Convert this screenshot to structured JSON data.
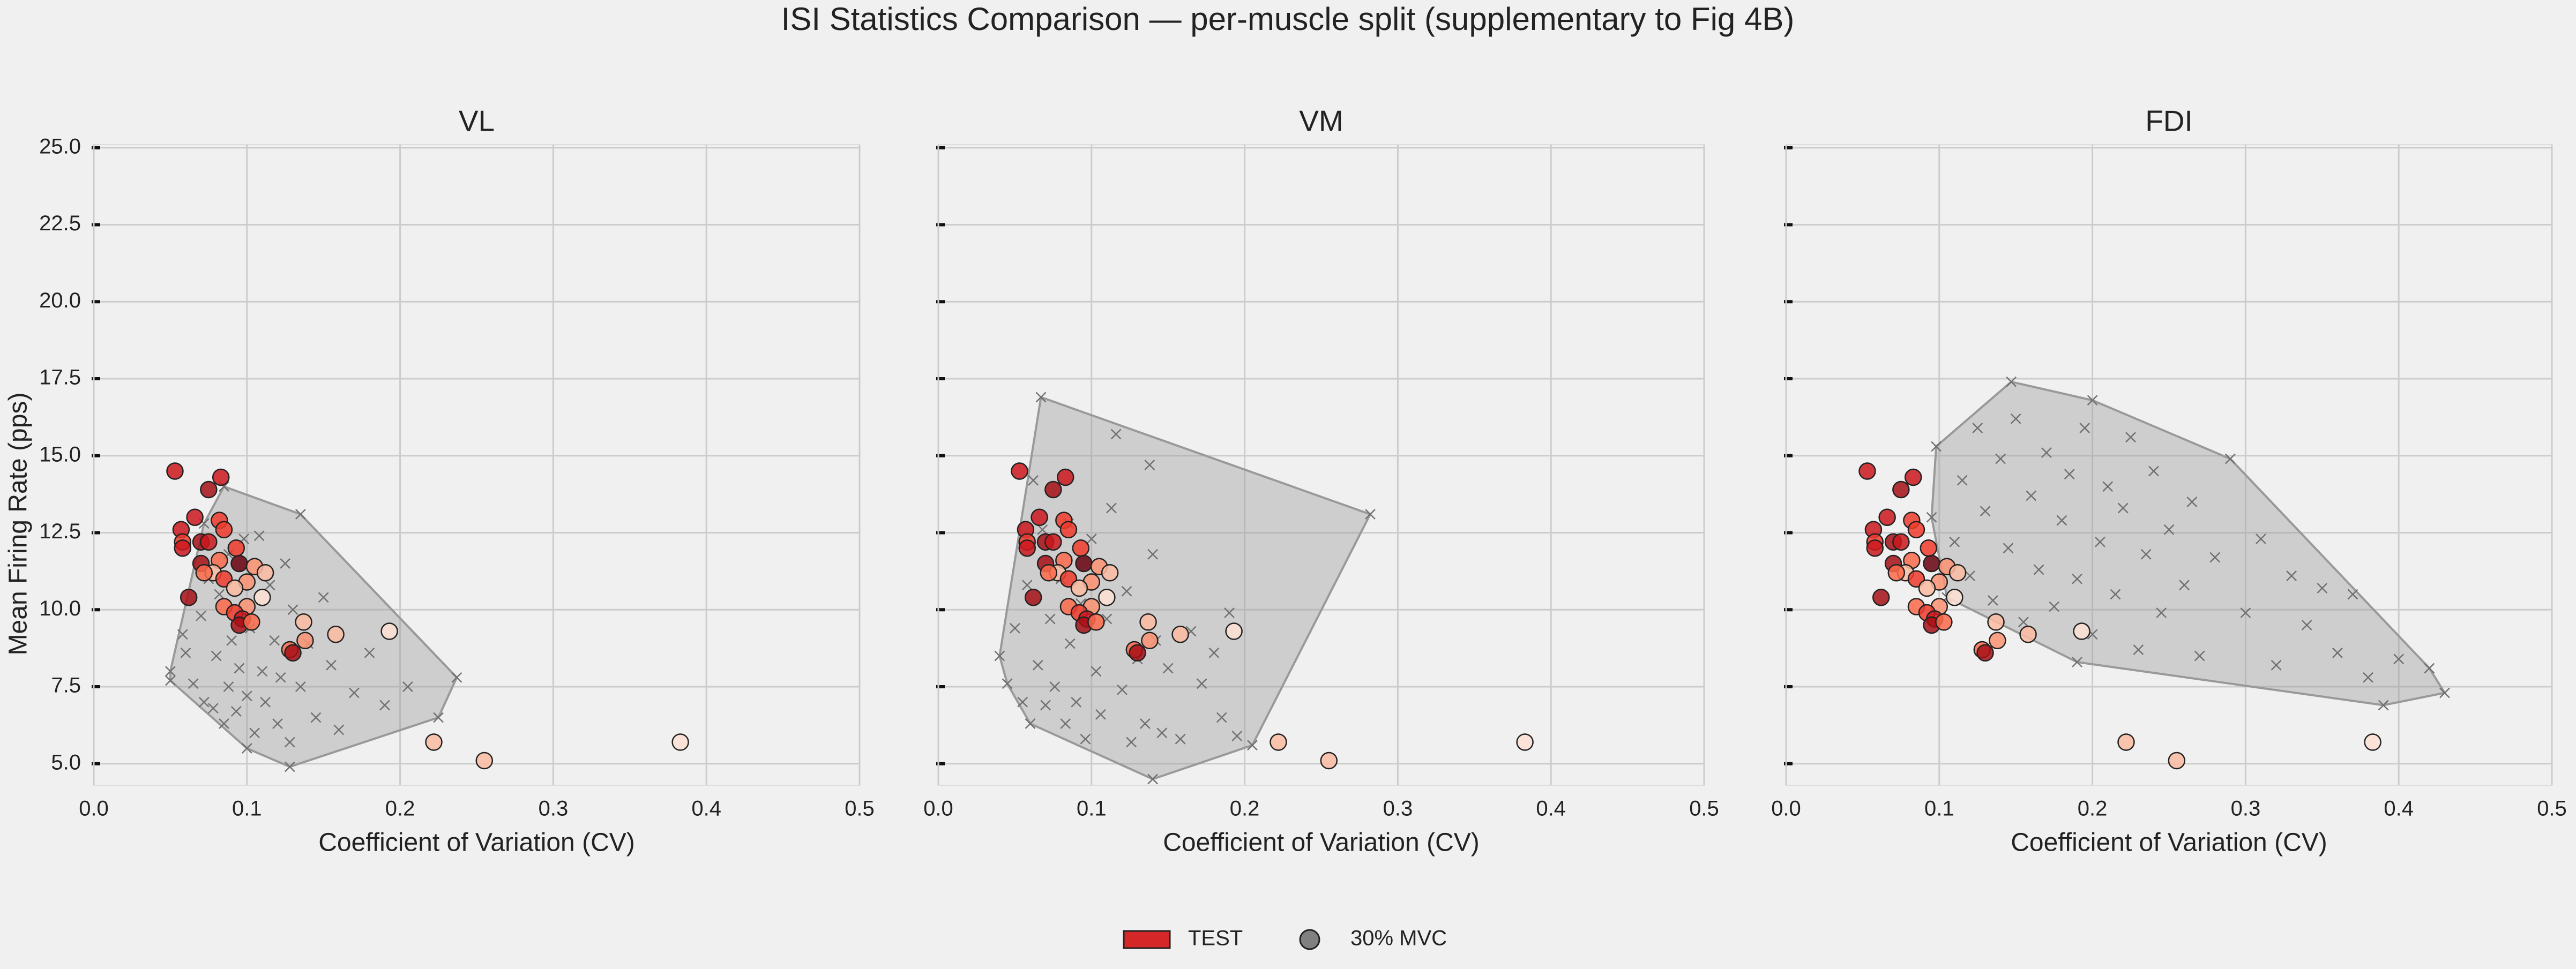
{
  "title": "ISI Statistics Comparison — per-muscle split (supplementary to Fig 4B)",
  "legend": [
    {
      "label": "TEST",
      "color": "#d62728",
      "marker": "square"
    },
    {
      "label": "30% MVC",
      "color": "#808080",
      "marker": "circle"
    }
  ],
  "chart_data": [
    {
      "type": "scatter",
      "title": "VL",
      "x_label": "Coefficient of Variation (CV)",
      "y_label": "Mean Firing Rate (pps)",
      "xlim": [
        0,
        0.5
      ],
      "ylim": [
        4.3,
        25.1
      ],
      "grid": true,
      "hull": true,
      "ytick_labels": true,
      "xticks": [
        {
          "value": 0,
          "label": "0.0"
        },
        0.1,
        0.2,
        0.3,
        0.4,
        0.5
      ],
      "yticks": [
        {
          "value": 5,
          "label": "5.0"
        },
        7.5,
        {
          "value": 10,
          "label": "10.0"
        },
        12.5,
        {
          "value": 15,
          "label": "15.0"
        },
        17.5,
        {
          "value": 20,
          "label": "20.0"
        },
        22.5,
        {
          "value": 25,
          "label": "25.0"
        }
      ],
      "series": [
        {
          "marker": "x",
          "color": "#707070",
          "x": [
            0.05,
            0.05,
            0.085,
            0.135,
            0.237,
            0.225,
            0.128,
            0.1,
            0.058,
            0.06,
            0.065,
            0.07,
            0.072,
            0.075,
            0.078,
            0.08,
            0.082,
            0.085,
            0.088,
            0.09,
            0.093,
            0.095,
            0.098,
            0.1,
            0.102,
            0.105,
            0.108,
            0.11,
            0.112,
            0.115,
            0.118,
            0.12,
            0.122,
            0.125,
            0.128,
            0.13,
            0.135,
            0.14,
            0.145,
            0.15,
            0.155,
            0.16,
            0.17,
            0.18,
            0.19,
            0.205,
            0.072,
            0.088
          ],
          "values": [
            7.7,
            8.0,
            14.0,
            13.1,
            7.8,
            6.5,
            4.9,
            5.5,
            9.2,
            8.6,
            7.6,
            9.8,
            7.0,
            11.0,
            6.8,
            8.5,
            10.5,
            6.3,
            7.5,
            9.0,
            6.7,
            8.1,
            12.3,
            7.2,
            9.4,
            6.0,
            12.4,
            8.0,
            7.0,
            10.8,
            9.0,
            6.3,
            7.8,
            11.5,
            5.7,
            10.0,
            7.5,
            8.9,
            6.5,
            10.4,
            8.2,
            6.1,
            7.3,
            8.6,
            6.9,
            7.5,
            12.8,
            11.8
          ]
        },
        {
          "marker": "circle",
          "x": [
            0.053,
            0.083,
            0.075,
            0.066,
            0.082,
            0.057,
            0.085,
            0.058,
            0.07,
            0.075,
            0.093,
            0.058,
            0.082,
            0.07,
            0.095,
            0.105,
            0.078,
            0.072,
            0.112,
            0.085,
            0.1,
            0.092,
            0.062,
            0.11,
            0.085,
            0.1,
            0.092,
            0.097,
            0.095,
            0.103,
            0.137,
            0.158,
            0.193,
            0.138,
            0.128,
            0.13,
            0.222,
            0.255,
            0.383
          ],
          "values": [
            14.5,
            14.3,
            13.9,
            13.0,
            12.9,
            12.6,
            12.6,
            12.2,
            12.2,
            12.2,
            12.0,
            12.0,
            11.6,
            11.5,
            11.5,
            11.4,
            11.2,
            11.2,
            11.2,
            11.0,
            10.9,
            10.7,
            10.4,
            10.4,
            10.1,
            10.1,
            9.9,
            9.7,
            9.5,
            9.6,
            9.6,
            9.2,
            9.3,
            9.0,
            8.7,
            8.6,
            5.7,
            5.1,
            5.7
          ],
          "colors": [
            "#cb181d",
            "#cb181d",
            "#a50f15",
            "#cb181d",
            "#ef3b2c",
            "#cb181d",
            "#ef3b2c",
            "#ef3b2c",
            "#a50f15",
            "#cb181d",
            "#ef3b2c",
            "#cb181d",
            "#fb6a4a",
            "#a50f15",
            "#67000d",
            "#fc9272",
            "#fcbba1",
            "#fb6a4a",
            "#fcbba1",
            "#ef3b2c",
            "#fc9272",
            "#fcbba1",
            "#a50f15",
            "#fee0d2",
            "#fb6a4a",
            "#fc9272",
            "#ef3b2c",
            "#cb181d",
            "#a50f15",
            "#fb6a4a",
            "#fcbba1",
            "#fcbba1",
            "#fee0d2",
            "#fc9272",
            "#fb6a4a",
            "#a50f15",
            "#fcbba1",
            "#fcbba1",
            "#fee0d2"
          ]
        }
      ]
    },
    {
      "type": "scatter",
      "title": "VM",
      "x_label": "Coefficient of Variation (CV)",
      "xlim": [
        0,
        0.5
      ],
      "ylim": [
        4.3,
        25.1
      ],
      "grid": true,
      "hull": true,
      "ytick_labels": false,
      "xticks": [
        {
          "value": 0,
          "label": "0.0"
        },
        0.1,
        0.2,
        0.3,
        0.4,
        0.5
      ],
      "yticks": [
        5,
        7.5,
        10,
        12.5,
        15,
        17.5,
        20,
        22.5,
        25
      ],
      "series": [
        {
          "marker": "x",
          "color": "#707070",
          "x": [
            0.04,
            0.067,
            0.282,
            0.205,
            0.14,
            0.06,
            0.045,
            0.05,
            0.055,
            0.058,
            0.062,
            0.065,
            0.068,
            0.07,
            0.073,
            0.076,
            0.08,
            0.083,
            0.086,
            0.09,
            0.093,
            0.096,
            0.1,
            0.103,
            0.106,
            0.11,
            0.113,
            0.116,
            0.12,
            0.123,
            0.126,
            0.13,
            0.135,
            0.138,
            0.142,
            0.146,
            0.15,
            0.158,
            0.165,
            0.172,
            0.18,
            0.185,
            0.19,
            0.195,
            0.14,
            0.085
          ],
          "values": [
            8.5,
            16.9,
            13.1,
            5.6,
            4.5,
            6.3,
            7.6,
            9.4,
            7.0,
            10.8,
            14.2,
            8.2,
            12.6,
            6.9,
            9.7,
            7.5,
            11.0,
            6.3,
            8.9,
            7.0,
            10.2,
            5.8,
            12.3,
            8.0,
            6.6,
            9.7,
            13.3,
            15.7,
            7.4,
            10.6,
            5.7,
            8.4,
            6.3,
            14.7,
            9.0,
            6.0,
            8.1,
            5.8,
            9.3,
            7.6,
            8.6,
            6.5,
            9.9,
            5.9,
            11.8,
            12.8
          ]
        },
        {
          "marker": "circle",
          "x": [
            0.053,
            0.083,
            0.075,
            0.066,
            0.082,
            0.057,
            0.085,
            0.058,
            0.07,
            0.075,
            0.093,
            0.058,
            0.082,
            0.07,
            0.095,
            0.105,
            0.078,
            0.072,
            0.112,
            0.085,
            0.1,
            0.092,
            0.062,
            0.11,
            0.085,
            0.1,
            0.092,
            0.097,
            0.095,
            0.103,
            0.137,
            0.158,
            0.193,
            0.138,
            0.128,
            0.13,
            0.222,
            0.255,
            0.383
          ],
          "values": [
            14.5,
            14.3,
            13.9,
            13.0,
            12.9,
            12.6,
            12.6,
            12.2,
            12.2,
            12.2,
            12.0,
            12.0,
            11.6,
            11.5,
            11.5,
            11.4,
            11.2,
            11.2,
            11.2,
            11.0,
            10.9,
            10.7,
            10.4,
            10.4,
            10.1,
            10.1,
            9.9,
            9.7,
            9.5,
            9.6,
            9.6,
            9.2,
            9.3,
            9.0,
            8.7,
            8.6,
            5.7,
            5.1,
            5.7
          ],
          "colors": [
            "#cb181d",
            "#cb181d",
            "#a50f15",
            "#cb181d",
            "#ef3b2c",
            "#cb181d",
            "#ef3b2c",
            "#ef3b2c",
            "#a50f15",
            "#cb181d",
            "#ef3b2c",
            "#cb181d",
            "#fb6a4a",
            "#a50f15",
            "#67000d",
            "#fc9272",
            "#fcbba1",
            "#fb6a4a",
            "#fcbba1",
            "#ef3b2c",
            "#fc9272",
            "#fcbba1",
            "#a50f15",
            "#fee0d2",
            "#fb6a4a",
            "#fc9272",
            "#ef3b2c",
            "#cb181d",
            "#a50f15",
            "#fb6a4a",
            "#fcbba1",
            "#fcbba1",
            "#fee0d2",
            "#fc9272",
            "#fb6a4a",
            "#a50f15",
            "#fcbba1",
            "#fcbba1",
            "#fee0d2"
          ]
        }
      ]
    },
    {
      "type": "scatter",
      "title": "FDI",
      "x_label": "Coefficient of Variation (CV)",
      "xlim": [
        0,
        0.5
      ],
      "ylim": [
        4.3,
        25.1
      ],
      "grid": true,
      "hull": true,
      "ytick_labels": false,
      "xticks": [
        {
          "value": 0,
          "label": "0.0"
        },
        0.1,
        0.2,
        0.3,
        0.4,
        0.5
      ],
      "yticks": [
        5,
        7.5,
        10,
        12.5,
        15,
        17.5,
        20,
        22.5,
        25
      ],
      "series": [
        {
          "marker": "x",
          "color": "#707070",
          "x": [
            0.098,
            0.147,
            0.2,
            0.43,
            0.42,
            0.39,
            0.19,
            0.105,
            0.095,
            0.11,
            0.115,
            0.12,
            0.125,
            0.13,
            0.135,
            0.14,
            0.145,
            0.15,
            0.155,
            0.16,
            0.165,
            0.17,
            0.175,
            0.18,
            0.185,
            0.19,
            0.195,
            0.2,
            0.205,
            0.21,
            0.215,
            0.22,
            0.225,
            0.23,
            0.235,
            0.24,
            0.245,
            0.25,
            0.26,
            0.265,
            0.27,
            0.28,
            0.29,
            0.3,
            0.31,
            0.32,
            0.33,
            0.34,
            0.35,
            0.36,
            0.37,
            0.38,
            0.4
          ],
          "values": [
            15.3,
            17.4,
            16.8,
            7.3,
            8.1,
            6.9,
            8.3,
            10.4,
            13.0,
            12.2,
            14.2,
            11.1,
            15.9,
            13.2,
            10.3,
            14.9,
            12.0,
            16.2,
            9.6,
            13.7,
            11.3,
            15.1,
            10.1,
            12.9,
            14.4,
            11.0,
            15.9,
            9.2,
            12.2,
            14.0,
            10.5,
            13.3,
            15.6,
            8.7,
            11.8,
            14.5,
            9.9,
            12.6,
            10.8,
            13.5,
            8.5,
            11.7,
            14.9,
            9.9,
            12.3,
            8.2,
            11.1,
            9.5,
            10.7,
            8.6,
            10.5,
            7.8,
            8.4
          ]
        },
        {
          "marker": "circle",
          "x": [
            0.053,
            0.083,
            0.075,
            0.066,
            0.082,
            0.057,
            0.085,
            0.058,
            0.07,
            0.075,
            0.093,
            0.058,
            0.082,
            0.07,
            0.095,
            0.105,
            0.078,
            0.072,
            0.112,
            0.085,
            0.1,
            0.092,
            0.062,
            0.11,
            0.085,
            0.1,
            0.092,
            0.097,
            0.095,
            0.103,
            0.137,
            0.158,
            0.193,
            0.138,
            0.128,
            0.13,
            0.222,
            0.255,
            0.383
          ],
          "values": [
            14.5,
            14.3,
            13.9,
            13.0,
            12.9,
            12.6,
            12.6,
            12.2,
            12.2,
            12.2,
            12.0,
            12.0,
            11.6,
            11.5,
            11.5,
            11.4,
            11.2,
            11.2,
            11.2,
            11.0,
            10.9,
            10.7,
            10.4,
            10.4,
            10.1,
            10.1,
            9.9,
            9.7,
            9.5,
            9.6,
            9.6,
            9.2,
            9.3,
            9.0,
            8.7,
            8.6,
            5.7,
            5.1,
            5.7
          ],
          "colors": [
            "#cb181d",
            "#cb181d",
            "#a50f15",
            "#cb181d",
            "#ef3b2c",
            "#cb181d",
            "#ef3b2c",
            "#ef3b2c",
            "#a50f15",
            "#cb181d",
            "#ef3b2c",
            "#cb181d",
            "#fb6a4a",
            "#a50f15",
            "#67000d",
            "#fc9272",
            "#fcbba1",
            "#fb6a4a",
            "#fcbba1",
            "#ef3b2c",
            "#fc9272",
            "#fcbba1",
            "#a50f15",
            "#fee0d2",
            "#fb6a4a",
            "#fc9272",
            "#ef3b2c",
            "#cb181d",
            "#a50f15",
            "#fb6a4a",
            "#fcbba1",
            "#fcbba1",
            "#fee0d2",
            "#fc9272",
            "#fb6a4a",
            "#a50f15",
            "#fcbba1",
            "#fcbba1",
            "#fee0d2"
          ]
        }
      ]
    }
  ]
}
